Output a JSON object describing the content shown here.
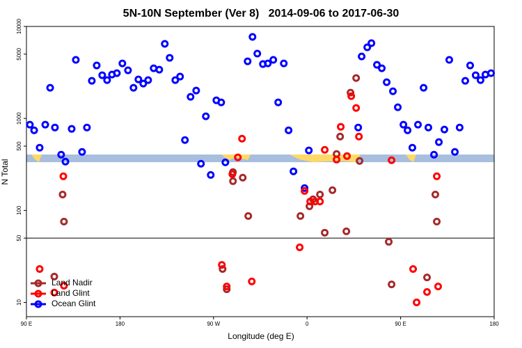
{
  "chart_data": {
    "type": "scatter",
    "title": "5N-10N September (Ver 8)   2014-09-06 to 2017-06-30",
    "x_label": "Longitude (deg E)",
    "y_label": "N Total",
    "xlim": [
      90,
      540
    ],
    "ylim": [
      7,
      10000
    ],
    "log_y": true,
    "xticks": [
      {
        "value": 90,
        "label": "90 E"
      },
      {
        "value": 180,
        "label": "180"
      },
      {
        "value": 270,
        "label": "90 W"
      },
      {
        "value": 360,
        "label": "0"
      },
      {
        "value": 450,
        "label": "90 E"
      },
      {
        "value": 540,
        "label": "180"
      }
    ],
    "yticks": [
      10,
      50,
      100,
      500,
      1000,
      5000,
      10000
    ],
    "hline": 50,
    "legend": "bottomleft",
    "series": [
      {
        "name": "Land Nadir",
        "color": "#a52a2a",
        "x": [
          124.8,
          126.1,
          116.8,
          288.7,
          288.7,
          298.1,
          303.4,
          278.7,
          282.7,
          353.6,
          362.3,
          365.7,
          372.4,
          377.0,
          384.4,
          388.4,
          391.8,
          397.8,
          401.8,
          407.2,
          410.5,
          438.6,
          441.3,
          475.4,
          483.4,
          484.8
        ],
        "values": [
          149,
          75.7,
          19.1,
          261,
          208,
          227,
          87,
          23.1,
          13.9,
          87,
          111,
          132,
          149,
          57.3,
          166,
          411,
          635,
          59.3,
          1906,
          2750,
          345,
          45.6,
          15.7,
          18.7,
          149,
          75.7
        ]
      },
      {
        "name": "Land Glint",
        "color": "#ff0000",
        "x": [
          102.7,
          116.8,
          126.1,
          125.5,
          288.1,
          293.4,
          297.4,
          278.0,
          282.7,
          306.8,
          352.9,
          357.6,
          363.0,
          367.7,
          372.4,
          377.0,
          388.4,
          392.4,
          398.4,
          402.5,
          407.2,
          409.9,
          441.3,
          462.0,
          465.4,
          475.4,
          484.8,
          486.1
        ],
        "values": [
          23.1,
          12.8,
          15.2,
          235,
          248,
          377,
          603,
          25.6,
          14.9,
          16.9,
          39.7,
          163,
          125,
          125,
          125,
          456,
          357,
          811,
          390,
          1747,
          1300,
          635,
          351,
          23.1,
          10,
          13.0,
          235,
          14.9
        ]
      },
      {
        "name": "Ocean Glint",
        "color": "#0000ff",
        "x": [
          93.3,
          97.4,
          102.7,
          108.1,
          112.8,
          117.4,
          123.4,
          127.5,
          133.5,
          137.5,
          143.5,
          148.2,
          152.9,
          157.6,
          162.9,
          167.6,
          172.3,
          177.0,
          182.3,
          187.7,
          193.0,
          197.7,
          202.4,
          207.1,
          212.4,
          217.8,
          223.1,
          227.8,
          233.2,
          237.8,
          242.5,
          247.9,
          253.3,
          257.9,
          262.6,
          267.3,
          272.7,
          277.4,
          281.4,
          302.8,
          307.5,
          312.1,
          317.5,
          322.2,
          327.5,
          332.2,
          337.6,
          342.2,
          346.9,
          357.6,
          361.7,
          409.2,
          412.5,
          417.9,
          421.9,
          427.2,
          431.9,
          436.6,
          442.6,
          447.3,
          452.7,
          456.7,
          461.3,
          466.7,
          472.1,
          476.7,
          482.1,
          486.8,
          492.1,
          496.8,
          502.2,
          506.8,
          512.2,
          516.9,
          522.2,
          526.9,
          531.6,
          537.0
        ],
        "values": [
          855,
          743,
          481,
          855,
          2154,
          797,
          404,
          339,
          770,
          4330,
          433,
          797,
          2566,
          3766,
          2950,
          2610,
          3000,
          3107,
          3965,
          3334,
          2154,
          2655,
          2393,
          2610,
          3511,
          3390,
          6470,
          4560,
          2610,
          2850,
          582,
          1717,
          2009,
          322,
          1054,
          243,
          1574,
          1494,
          333,
          4180,
          7700,
          5065,
          3900,
          3965,
          4330,
          1494,
          3965,
          743,
          266,
          175,
          449,
          797,
          4720,
          5930,
          6580,
          3830,
          3511,
          2476,
          1975,
          1322,
          855,
          743,
          481,
          855,
          2154,
          797,
          404,
          553,
          757,
          4330,
          433,
          797,
          2566,
          3766,
          2950,
          2610,
          3000,
          3107
        ]
      }
    ]
  }
}
